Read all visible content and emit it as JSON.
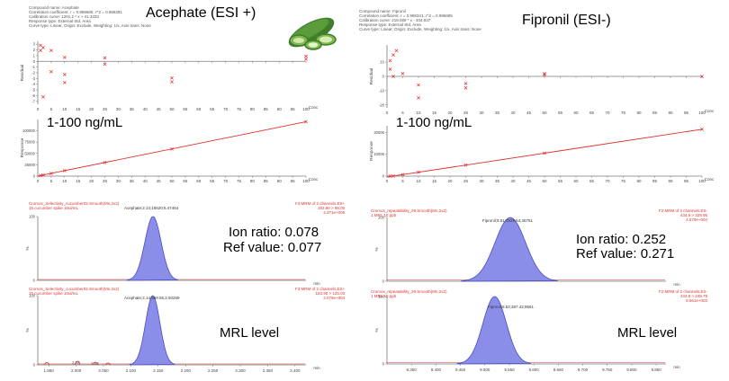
{
  "colors": {
    "axis": "#7a7a7a",
    "mark": "#e03030",
    "peak_fill": "#8a8ee8",
    "peak_stroke": "#4a4fc0",
    "trace": "#d03030"
  },
  "decor": {
    "image": "cucumber-image"
  },
  "acephate": {
    "title": "Acephate (ESI +)",
    "compound_text": [
      "Compound name: Acephate",
      "Correlation coefficient: r = 0.999685, r^2 = 0.999391",
      "Calibration curve: 1201.2 * x + 41.3333",
      "Response type: External Std, Area",
      "Curve type: Linear, Origin: Exclude, Weighting: 1/x, Axis trans: None"
    ],
    "range_text": "1-100 ng/mL",
    "ion_ratio": "Ion ratio: 0.078",
    "ref_value": "Ref value: 0.077",
    "mrl_text": "MRL level",
    "trace1_header": "Cromos_Selectivity_cucumber02.Smooth(Mn,2x2)",
    "trace1_sub": "15 cucumber spike 10ul/mL",
    "trace1_right": [
      "F3:MRM of 2 channels,ES+",
      "183.90 > 95.00",
      "4.371e+005"
    ],
    "trace1_peak": "Acephate;2.14;16520;5.47464",
    "trace2_header": "Cromos_Selectivity_cucumber02.Smooth(Mn,2x2)",
    "trace2_sub": "15 cucumber spike 10ul/mL",
    "trace2_right": [
      "F3:MRM of 2 channels,ES+",
      "183.90 > 125.03",
      "3.079e+004"
    ],
    "trace2_peak": "Acephate;2.14;969.65;2.50269",
    "small_peaks": [
      "2.00",
      "2.04"
    ],
    "conc_label": "Conc",
    "residual_label": "Residual",
    "response_label": "Response",
    "min_label": "min"
  },
  "fipronil": {
    "title": "Fipronil (ESI-)",
    "compound_text": [
      "Compound name: Fipronil",
      "Correlation coefficient: r = 0.998341, r^2 = 0.996685",
      "Calibration curve: 218.089 * x - 404.937",
      "Response type: External Std, Area",
      "Curve type: Linear, Origin: Exclude, Weighting: 1/x, Axis trans: None"
    ],
    "range_text": "1-100 ng/mL",
    "ion_ratio": "Ion ratio: 0.252",
    "ref_value": "Ref value: 0.271",
    "mrl_text": "MRL level",
    "trace1_header": "Cromos_repeatability_29.Smooth(Mn,2x2)",
    "trace1_sub": "1 MRL 10 ppb",
    "trace1_right": [
      "F2:MRM of 2 channels,ES-",
      "434.9 > 329.95",
      "4.570e+004"
    ],
    "trace1_peak": "Fipronil;9.51;1929.54;46751",
    "trace2_header": "Cromos_repeatability_29.Smooth(Mn,2x2)",
    "trace2_sub": "1 MRL 10 ppb",
    "trace2_right": [
      "F2:MRM of 2 channels,ES-",
      "434.9 > 249.79",
      "9.561e+003"
    ],
    "trace2_peak": "Fipronil;9.52;387.42;9561",
    "conc_label": "Conc",
    "residual_label": "Residual",
    "response_label": "Response",
    "min_label": "min"
  },
  "chart_data": [
    {
      "id": "acephate-residual",
      "type": "scatter",
      "ylabel": "Residual",
      "xlabel": "Conc",
      "x_ticks": [
        0,
        5,
        10,
        15,
        20,
        25,
        30,
        35,
        40,
        45,
        50,
        55,
        60,
        65,
        70,
        75,
        80,
        85,
        90,
        95,
        100
      ],
      "y_ticks": [
        3,
        2,
        1,
        0,
        -1,
        -2,
        -3,
        -4,
        -5,
        -6,
        -7
      ],
      "xlim": [
        0,
        100
      ],
      "ylim": [
        -7.5,
        3.5
      ],
      "x": [
        1,
        1,
        2,
        2,
        5,
        5,
        10,
        10,
        10,
        25,
        25,
        50,
        50,
        100,
        100
      ],
      "y": [
        2.8,
        1.9,
        2.4,
        -6.2,
        1.9,
        -1.8,
        0.7,
        -2.3,
        -3.7,
        0.6,
        -0.5,
        -2.9,
        -3.6,
        0.9,
        0.4
      ]
    },
    {
      "id": "acephate-calibration",
      "type": "scatter",
      "ylabel": "Response",
      "xlabel": "Conc",
      "x_ticks": [
        0,
        5,
        10,
        15,
        20,
        25,
        30,
        35,
        40,
        45,
        50,
        55,
        60,
        65,
        70,
        75,
        80,
        85,
        90,
        95,
        100
      ],
      "y_ticks": [
        100000,
        75000,
        50000,
        25000,
        0
      ],
      "xlim": [
        0,
        100
      ],
      "ylim": [
        0,
        125000
      ],
      "x": [
        1,
        2,
        5,
        10,
        25,
        50,
        100
      ],
      "y": [
        1200,
        2400,
        6000,
        12000,
        30100,
        60000,
        120200
      ],
      "fit": {
        "slope": 1201.2,
        "intercept": 41.3333
      }
    },
    {
      "id": "fipronil-residual",
      "type": "scatter",
      "ylabel": "Residual",
      "xlabel": "Conc",
      "x_ticks": [
        0,
        5,
        10,
        15,
        20,
        25,
        30,
        35,
        40,
        45,
        50,
        55,
        60,
        65,
        70,
        75,
        80,
        85,
        90,
        95,
        100
      ],
      "y_ticks": [
        10,
        0,
        -10,
        -20
      ],
      "xlim": [
        0,
        100
      ],
      "ylim": [
        -22,
        22
      ],
      "x": [
        1,
        1,
        2,
        2,
        3,
        5,
        10,
        10,
        25,
        25,
        50,
        50,
        100
      ],
      "y": [
        11,
        5,
        15,
        0,
        18,
        2,
        -6,
        -15,
        -5,
        -8,
        1,
        2,
        0
      ]
    },
    {
      "id": "fipronil-calibration",
      "type": "scatter",
      "ylabel": "Response",
      "xlabel": "Conc",
      "x_ticks": [
        0,
        5,
        10,
        15,
        20,
        25,
        30,
        35,
        40,
        45,
        50,
        55,
        60,
        65,
        70,
        75,
        80,
        85,
        90,
        95,
        100
      ],
      "y_ticks": [
        20000,
        10000,
        0
      ],
      "xlim": [
        0,
        100
      ],
      "ylim": [
        0,
        23000
      ],
      "x": [
        1,
        2,
        5,
        10,
        25,
        50,
        100
      ],
      "y": [
        0,
        40,
        690,
        1780,
        5050,
        10500,
        21400
      ],
      "fit": {
        "slope": 218.089,
        "intercept": -404.937
      }
    },
    {
      "id": "acephate-trace-1",
      "type": "line",
      "ylabel": "%",
      "xlabel": "min",
      "x_ticks": [],
      "y_ticks": [
        100,
        0
      ],
      "ylim": [
        0,
        100
      ],
      "peak": {
        "rt": 2.14,
        "height": 100
      }
    },
    {
      "id": "acephate-trace-2",
      "type": "line",
      "ylabel": "%",
      "xlabel": "min",
      "x_ticks": [
        1.95,
        2.0,
        2.05,
        2.1,
        2.15,
        2.2,
        2.25,
        2.3,
        2.35,
        2.4
      ],
      "x_tick_labels": [
        "1.950",
        "2.000",
        "2.050",
        "2.100",
        "2.150",
        "2.200",
        "2.250",
        "2.300",
        "2.350",
        "2.400"
      ],
      "xlim": [
        1.93,
        2.42
      ],
      "y_ticks": [
        100,
        0
      ],
      "ylim": [
        0,
        100
      ],
      "peak": {
        "rt": 2.14,
        "height": 100
      }
    },
    {
      "id": "fipronil-trace-1",
      "type": "line",
      "ylabel": "%",
      "xlabel": "min",
      "x_ticks": [],
      "y_ticks": [
        100,
        0
      ],
      "ylim": [
        0,
        100
      ],
      "peak": {
        "rt": 9.51,
        "height": 100
      }
    },
    {
      "id": "fipronil-trace-2",
      "type": "line",
      "ylabel": "%",
      "xlabel": "min",
      "x_ticks": [
        9.35,
        9.4,
        9.45,
        9.5,
        9.55,
        9.6,
        9.65,
        9.7,
        9.75,
        9.8,
        9.85
      ],
      "x_tick_labels": [
        "9.350",
        "9.400",
        "9.450",
        "9.500",
        "9.550",
        "9.600",
        "9.650",
        "9.700",
        "9.750",
        "9.800",
        "9.850"
      ],
      "xlim": [
        9.3,
        9.87
      ],
      "y_ticks": [
        100,
        0
      ],
      "ylim": [
        0,
        100
      ],
      "peak": {
        "rt": 9.52,
        "height": 100
      }
    }
  ]
}
